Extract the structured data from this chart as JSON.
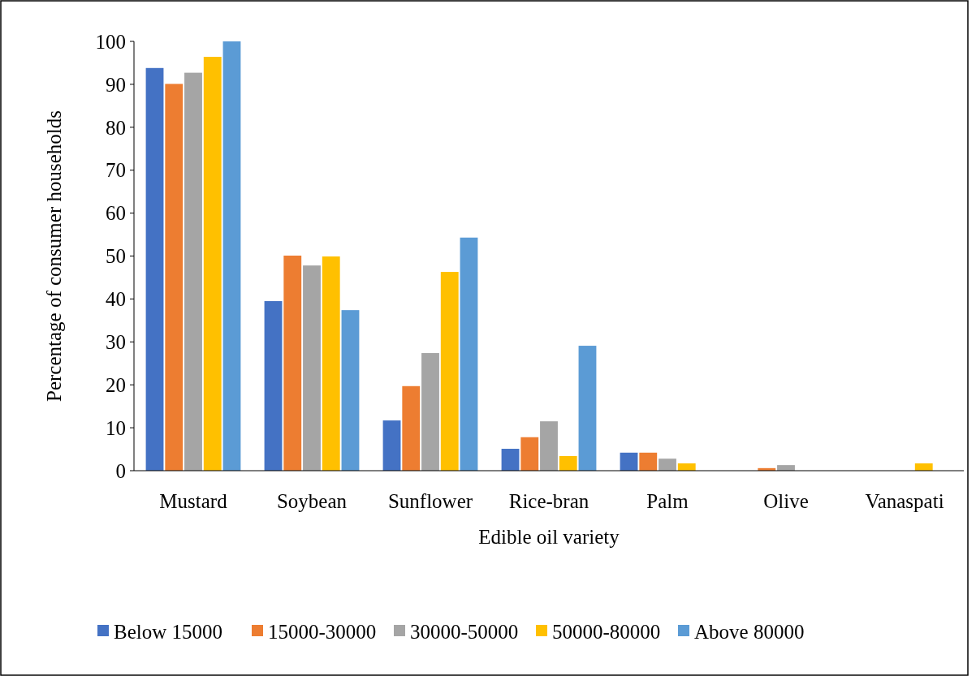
{
  "chart_data": {
    "type": "bar",
    "xlabel": "Edible oil variety",
    "ylabel": "Percentage of consumer households",
    "categories": [
      "Mustard",
      "Soybean",
      "Sunflower",
      "Rice-bran",
      "Palm",
      "Olive",
      "Vanaspati"
    ],
    "series": [
      {
        "name": "Below 15000",
        "color": "#4472c4",
        "values": [
          93.8,
          39.5,
          11.7,
          5.1,
          4.2,
          0,
          0
        ]
      },
      {
        "name": "15000-30000",
        "color": "#ed7d31",
        "values": [
          90.1,
          50.1,
          19.7,
          7.8,
          4.2,
          0.6,
          0
        ]
      },
      {
        "name": "30000-50000",
        "color": "#a5a5a5",
        "values": [
          92.7,
          47.8,
          27.4,
          11.5,
          2.8,
          1.3,
          0
        ]
      },
      {
        "name": "50000-80000",
        "color": "#ffc000",
        "values": [
          96.4,
          49.9,
          46.3,
          3.4,
          1.7,
          0,
          1.7
        ]
      },
      {
        "name": "Above 80000",
        "color": "#5b9bd5",
        "values": [
          100,
          37.4,
          54.3,
          29.1,
          0,
          0,
          0
        ]
      }
    ],
    "ylim": [
      0,
      100
    ],
    "yticks": [
      0,
      10,
      20,
      30,
      40,
      50,
      60,
      70,
      80,
      90,
      100
    ],
    "legend": "bottom",
    "grid": false
  }
}
